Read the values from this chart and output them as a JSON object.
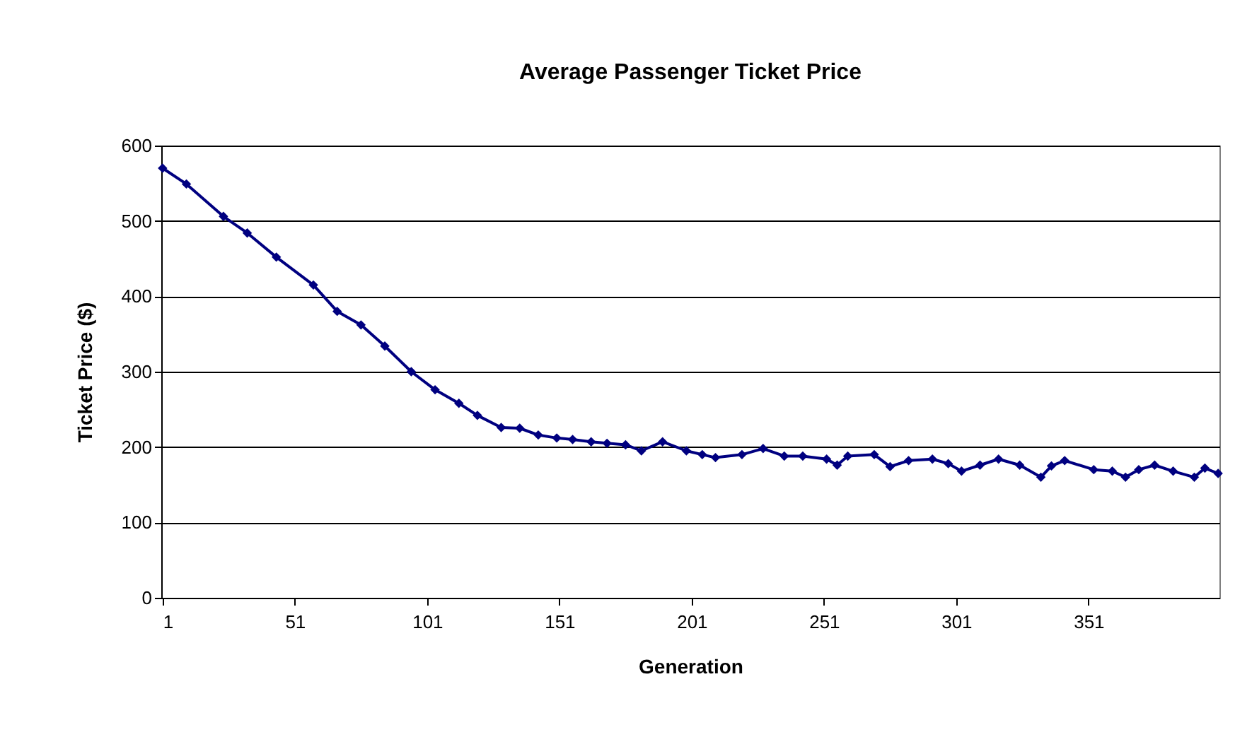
{
  "chart_data": {
    "type": "line",
    "title": "Average Passenger Ticket Price",
    "xlabel": "Generation",
    "ylabel": "Ticket Price ($)",
    "x": [
      1,
      10,
      24,
      33,
      44,
      58,
      67,
      76,
      85,
      95,
      104,
      113,
      120,
      129,
      136,
      143,
      150,
      156,
      163,
      169,
      176,
      182,
      190,
      199,
      205,
      210,
      220,
      228,
      236,
      243,
      252,
      256,
      260,
      270,
      276,
      283,
      292,
      298,
      303,
      310,
      317,
      325,
      333,
      337,
      342,
      353,
      360,
      365,
      370,
      376,
      383,
      391,
      395,
      400
    ],
    "series": [
      {
        "color": "#000080",
        "values": [
          570,
          549,
          506,
          484,
          452,
          415,
          380,
          362,
          334,
          300,
          276,
          258,
          242,
          226,
          225,
          216,
          212,
          210,
          207,
          205,
          203,
          195,
          207,
          195,
          190,
          186,
          190,
          198,
          188,
          188,
          184,
          176,
          188,
          190,
          174,
          182,
          184,
          178,
          168,
          176,
          184,
          176,
          160,
          175,
          182,
          170,
          168,
          160,
          170,
          176,
          168,
          160,
          172,
          165
        ]
      }
    ],
    "xlim": [
      0.5,
      400.5
    ],
    "xticks": [
      1,
      51,
      101,
      151,
      201,
      251,
      301,
      351
    ],
    "ylim": [
      0,
      600
    ],
    "yticks": [
      0,
      100,
      200,
      300,
      400,
      500,
      600
    ],
    "grid": "y",
    "marker": "diamond",
    "line_style": "solid"
  }
}
